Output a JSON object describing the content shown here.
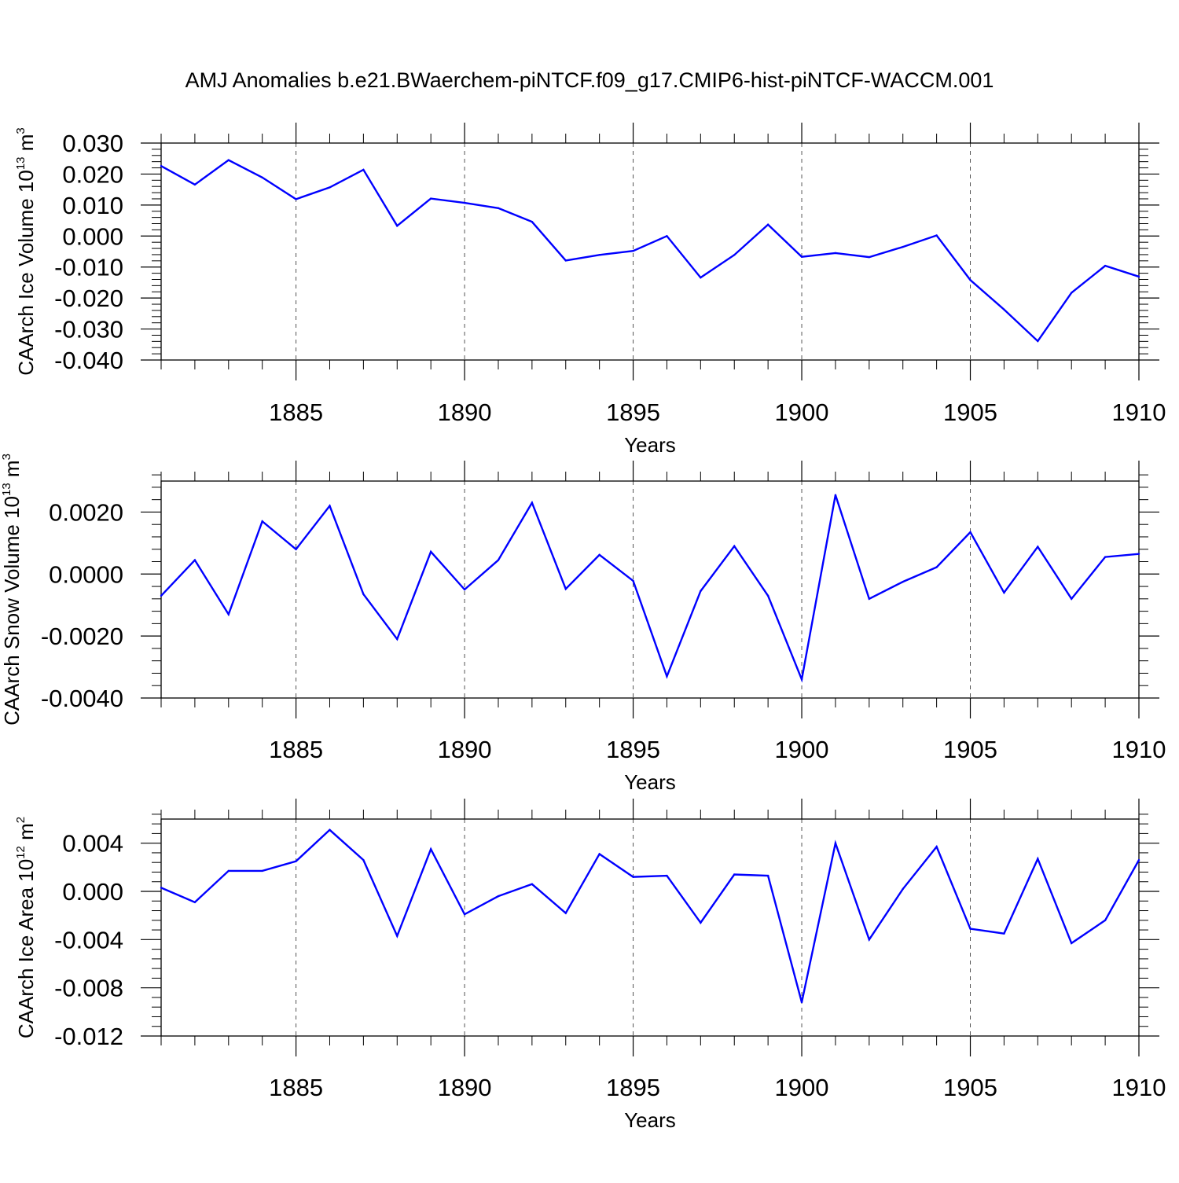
{
  "title": "AMJ Anomalies b.e21.BWaerchem-piNTCF.f09_g17.CMIP6-hist-piNTCF-WACCM.001",
  "colors": {
    "line": "#0000ff",
    "axis": "#000000",
    "grid": "#555555",
    "background": "#ffffff"
  },
  "chart_data": [
    {
      "type": "line",
      "ylabel": {
        "prefix": "CAArch Ice Volume 10",
        "exponent": "13",
        "unit_base": " m",
        "unit_exp": "3"
      },
      "xlabel": "Years",
      "xlim": [
        1881,
        1910
      ],
      "ylim": [
        -0.04,
        0.03
      ],
      "yticks": [
        0.03,
        0.02,
        0.01,
        0.0,
        -0.01,
        -0.02,
        -0.03,
        -0.04
      ],
      "ytick_labels": [
        "0.030",
        "0.020",
        "0.010",
        "0.000",
        "-0.010",
        "-0.020",
        "-0.030",
        "-0.040"
      ],
      "xticks": [
        1885,
        1890,
        1895,
        1900,
        1905,
        1910
      ],
      "xtick_labels": [
        "1885",
        "1890",
        "1895",
        "1900",
        "1905",
        "1910"
      ],
      "grid": "vertical dashed at major x ticks",
      "x": [
        1881,
        1882,
        1883,
        1884,
        1885,
        1886,
        1887,
        1888,
        1889,
        1890,
        1891,
        1892,
        1893,
        1894,
        1895,
        1896,
        1897,
        1898,
        1899,
        1900,
        1901,
        1902,
        1903,
        1904,
        1905,
        1906,
        1907,
        1908,
        1909,
        1910
      ],
      "series": [
        {
          "values": [
            0.0226,
            0.0166,
            0.0245,
            0.0189,
            0.0119,
            0.0157,
            0.0214,
            0.0033,
            0.0121,
            0.0107,
            0.009,
            0.0046,
            -0.0079,
            -0.0061,
            -0.0048,
            0.0,
            -0.0134,
            -0.0061,
            0.0037,
            -0.0067,
            -0.0055,
            -0.0068,
            -0.0035,
            0.0002,
            -0.0142,
            -0.0237,
            -0.0339,
            -0.0183,
            -0.0096,
            -0.0131
          ]
        }
      ]
    },
    {
      "type": "line",
      "ylabel": {
        "prefix": "CAArch Snow Volume 10",
        "exponent": "13",
        "unit_base": " m",
        "unit_exp": "3"
      },
      "xlabel": "Years",
      "xlim": [
        1881,
        1910
      ],
      "ylim": [
        -0.004,
        0.003
      ],
      "yticks": [
        0.002,
        0.0,
        -0.002,
        -0.004
      ],
      "ytick_labels": [
        "0.0020",
        "0.0000",
        "-0.0020",
        "-0.0040"
      ],
      "xticks": [
        1885,
        1890,
        1895,
        1900,
        1905,
        1910
      ],
      "xtick_labels": [
        "1885",
        "1890",
        "1895",
        "1900",
        "1905",
        "1910"
      ],
      "grid": "vertical dashed at major x ticks",
      "x": [
        1881,
        1882,
        1883,
        1884,
        1885,
        1886,
        1887,
        1888,
        1889,
        1890,
        1891,
        1892,
        1893,
        1894,
        1895,
        1896,
        1897,
        1898,
        1899,
        1900,
        1901,
        1902,
        1903,
        1904,
        1905,
        1906,
        1907,
        1908,
        1909,
        1910
      ],
      "series": [
        {
          "values": [
            -0.0007,
            0.00045,
            -0.0013,
            0.0017,
            0.0008,
            0.0022,
            -0.00065,
            -0.0021,
            0.00072,
            -0.0005,
            0.00045,
            0.0023,
            -0.00048,
            0.00062,
            -0.00022,
            -0.0033,
            -0.00055,
            0.0009,
            -0.0007,
            -0.0034,
            0.00255,
            -0.0008,
            -0.00025,
            0.00022,
            0.00135,
            -0.0006,
            0.00088,
            -0.0008,
            0.00055,
            0.00065
          ]
        }
      ]
    },
    {
      "type": "line",
      "ylabel": {
        "prefix": "CAArch Ice Area 10",
        "exponent": "12",
        "unit_base": " m",
        "unit_exp": "2"
      },
      "xlabel": "Years",
      "xlim": [
        1881,
        1910
      ],
      "ylim": [
        -0.012,
        0.006
      ],
      "yticks": [
        0.004,
        0.0,
        -0.004,
        -0.008,
        -0.012
      ],
      "ytick_labels": [
        "0.004",
        "0.000",
        "-0.004",
        "-0.008",
        "-0.012"
      ],
      "xticks": [
        1885,
        1890,
        1895,
        1900,
        1905,
        1910
      ],
      "xtick_labels": [
        "1885",
        "1890",
        "1895",
        "1900",
        "1905",
        "1910"
      ],
      "grid": "vertical dashed at major x ticks",
      "x": [
        1881,
        1882,
        1883,
        1884,
        1885,
        1886,
        1887,
        1888,
        1889,
        1890,
        1891,
        1892,
        1893,
        1894,
        1895,
        1896,
        1897,
        1898,
        1899,
        1900,
        1901,
        1902,
        1903,
        1904,
        1905,
        1906,
        1907,
        1908,
        1909,
        1910
      ],
      "series": [
        {
          "values": [
            0.0003,
            -0.0009,
            0.0017,
            0.0017,
            0.0025,
            0.0051,
            0.0026,
            -0.0037,
            0.0035,
            -0.0019,
            -0.0004,
            0.0006,
            -0.0018,
            0.0031,
            0.0012,
            0.0013,
            -0.0026,
            0.0014,
            0.0013,
            -0.0092,
            0.004,
            -0.004,
            0.0002,
            0.0037,
            -0.0031,
            -0.0035,
            0.0027,
            -0.0043,
            -0.0024,
            0.0026
          ]
        }
      ]
    }
  ]
}
